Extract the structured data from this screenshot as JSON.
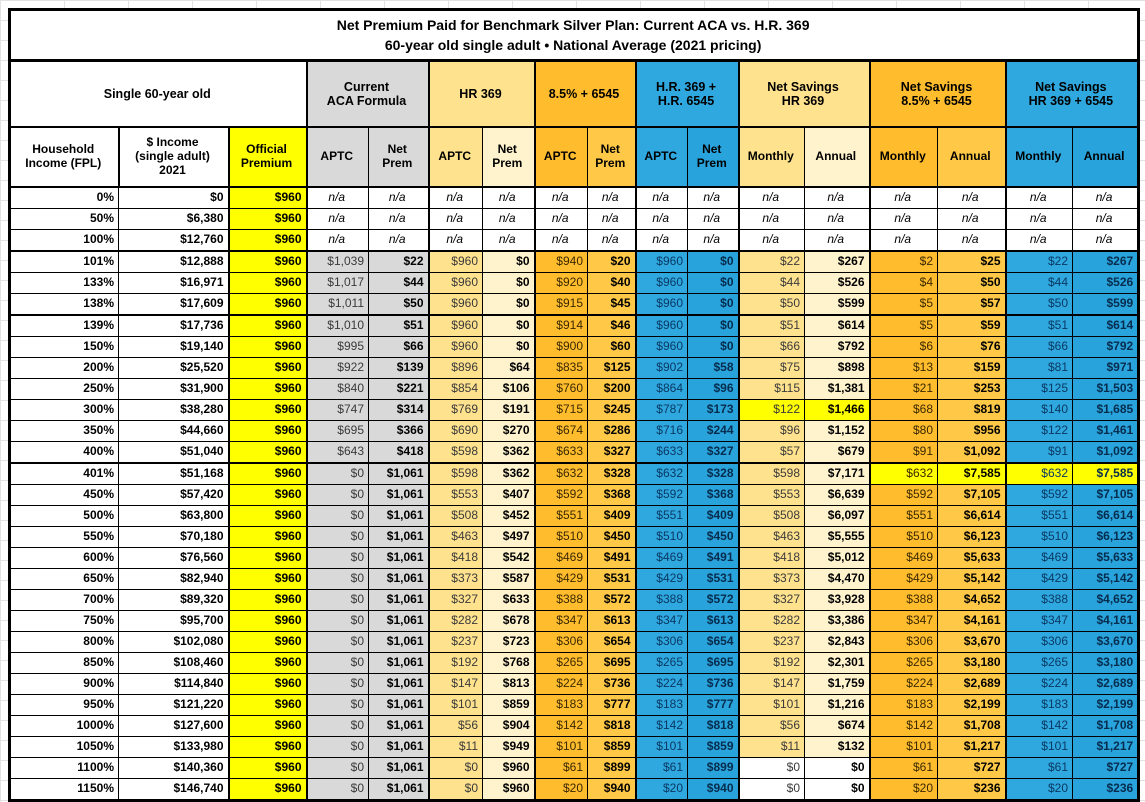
{
  "chart_data": {
    "type": "table",
    "title": "Net Premium Paid for Benchmark Silver Plan: Current ACA vs. H.R. 369",
    "subtitle": "60-year old single adult • National Average (2021 pricing)",
    "groups": [
      {
        "label": "Single 60-year old",
        "span": 3
      },
      {
        "label": "Current\nACA Formula",
        "span": 2
      },
      {
        "label": "HR 369",
        "span": 2
      },
      {
        "label": "8.5% + 6545",
        "span": 2
      },
      {
        "label": "H.R. 369 +\nH.R. 6545",
        "span": 2
      },
      {
        "label": "Net Savings\nHR 369",
        "span": 2
      },
      {
        "label": "Net Savings\n8.5% + 6545",
        "span": 2
      },
      {
        "label": "Net Savings\nHR 369 + 6545",
        "span": 2
      }
    ],
    "subheaders": [
      "Household\nIncome (FPL)",
      "$ Income\n(single adult)\n2021",
      "Official\nPremium",
      "APTC",
      "Net\nPrem",
      "APTC",
      "Net\nPrem",
      "APTC",
      "Net\nPrem",
      "APTC",
      "Net\nPrem",
      "Monthly",
      "Annual",
      "Monthly",
      "Annual",
      "Monthly",
      "Annual"
    ],
    "na_text": "n/a",
    "thick_border_after_rows": [
      2,
      5,
      12
    ],
    "rows": [
      {
        "na": true,
        "cells": [
          "0%",
          "$0",
          "$960",
          "n/a",
          "n/a",
          "n/a",
          "n/a",
          "n/a",
          "n/a",
          "n/a",
          "n/a",
          "n/a",
          "n/a",
          "n/a",
          "n/a",
          "n/a",
          "n/a"
        ]
      },
      {
        "na": true,
        "cells": [
          "50%",
          "$6,380",
          "$960",
          "n/a",
          "n/a",
          "n/a",
          "n/a",
          "n/a",
          "n/a",
          "n/a",
          "n/a",
          "n/a",
          "n/a",
          "n/a",
          "n/a",
          "n/a",
          "n/a"
        ]
      },
      {
        "na": true,
        "cells": [
          "100%",
          "$12,760",
          "$960",
          "n/a",
          "n/a",
          "n/a",
          "n/a",
          "n/a",
          "n/a",
          "n/a",
          "n/a",
          "n/a",
          "n/a",
          "n/a",
          "n/a",
          "n/a",
          "n/a"
        ]
      },
      {
        "cells": [
          "101%",
          "$12,888",
          "$960",
          "$1,039",
          "$22",
          "$960",
          "$0",
          "$940",
          "$20",
          "$960",
          "$0",
          "$22",
          "$267",
          "$2",
          "$25",
          "$22",
          "$267"
        ]
      },
      {
        "cells": [
          "133%",
          "$16,971",
          "$960",
          "$1,017",
          "$44",
          "$960",
          "$0",
          "$920",
          "$40",
          "$960",
          "$0",
          "$44",
          "$526",
          "$4",
          "$50",
          "$44",
          "$526"
        ]
      },
      {
        "cells": [
          "138%",
          "$17,609",
          "$960",
          "$1,011",
          "$50",
          "$960",
          "$0",
          "$915",
          "$45",
          "$960",
          "$0",
          "$50",
          "$599",
          "$5",
          "$57",
          "$50",
          "$599"
        ]
      },
      {
        "cells": [
          "139%",
          "$17,736",
          "$960",
          "$1,010",
          "$51",
          "$960",
          "$0",
          "$914",
          "$46",
          "$960",
          "$0",
          "$51",
          "$614",
          "$5",
          "$59",
          "$51",
          "$614"
        ]
      },
      {
        "cells": [
          "150%",
          "$19,140",
          "$960",
          "$995",
          "$66",
          "$960",
          "$0",
          "$900",
          "$60",
          "$960",
          "$0",
          "$66",
          "$792",
          "$6",
          "$76",
          "$66",
          "$792"
        ]
      },
      {
        "cells": [
          "200%",
          "$25,520",
          "$960",
          "$922",
          "$139",
          "$896",
          "$64",
          "$835",
          "$125",
          "$902",
          "$58",
          "$75",
          "$898",
          "$13",
          "$159",
          "$81",
          "$971"
        ]
      },
      {
        "cells": [
          "250%",
          "$31,900",
          "$960",
          "$840",
          "$221",
          "$854",
          "$106",
          "$760",
          "$200",
          "$864",
          "$96",
          "$115",
          "$1,381",
          "$21",
          "$253",
          "$125",
          "$1,503"
        ]
      },
      {
        "hl": {
          "11": "yellow",
          "12": "yellow"
        },
        "cells": [
          "300%",
          "$38,280",
          "$960",
          "$747",
          "$314",
          "$769",
          "$191",
          "$715",
          "$245",
          "$787",
          "$173",
          "$122",
          "$1,466",
          "$68",
          "$819",
          "$140",
          "$1,685"
        ]
      },
      {
        "cells": [
          "350%",
          "$44,660",
          "$960",
          "$695",
          "$366",
          "$690",
          "$270",
          "$674",
          "$286",
          "$716",
          "$244",
          "$96",
          "$1,152",
          "$80",
          "$956",
          "$122",
          "$1,461"
        ]
      },
      {
        "cells": [
          "400%",
          "$51,040",
          "$960",
          "$643",
          "$418",
          "$598",
          "$362",
          "$633",
          "$327",
          "$633",
          "$327",
          "$57",
          "$679",
          "$91",
          "$1,092",
          "$91",
          "$1,092"
        ]
      },
      {
        "hl": {
          "13": "yellow",
          "14": "yellow",
          "15": "yellow",
          "16": "yellow"
        },
        "cells": [
          "401%",
          "$51,168",
          "$960",
          "$0",
          "$1,061",
          "$598",
          "$362",
          "$632",
          "$328",
          "$632",
          "$328",
          "$598",
          "$7,171",
          "$632",
          "$7,585",
          "$632",
          "$7,585"
        ]
      },
      {
        "cells": [
          "450%",
          "$57,420",
          "$960",
          "$0",
          "$1,061",
          "$553",
          "$407",
          "$592",
          "$368",
          "$592",
          "$368",
          "$553",
          "$6,639",
          "$592",
          "$7,105",
          "$592",
          "$7,105"
        ]
      },
      {
        "cells": [
          "500%",
          "$63,800",
          "$960",
          "$0",
          "$1,061",
          "$508",
          "$452",
          "$551",
          "$409",
          "$551",
          "$409",
          "$508",
          "$6,097",
          "$551",
          "$6,614",
          "$551",
          "$6,614"
        ]
      },
      {
        "cells": [
          "550%",
          "$70,180",
          "$960",
          "$0",
          "$1,061",
          "$463",
          "$497",
          "$510",
          "$450",
          "$510",
          "$450",
          "$463",
          "$5,555",
          "$510",
          "$6,123",
          "$510",
          "$6,123"
        ]
      },
      {
        "cells": [
          "600%",
          "$76,560",
          "$960",
          "$0",
          "$1,061",
          "$418",
          "$542",
          "$469",
          "$491",
          "$469",
          "$491",
          "$418",
          "$5,012",
          "$469",
          "$5,633",
          "$469",
          "$5,633"
        ]
      },
      {
        "cells": [
          "650%",
          "$82,940",
          "$960",
          "$0",
          "$1,061",
          "$373",
          "$587",
          "$429",
          "$531",
          "$429",
          "$531",
          "$373",
          "$4,470",
          "$429",
          "$5,142",
          "$429",
          "$5,142"
        ]
      },
      {
        "cells": [
          "700%",
          "$89,320",
          "$960",
          "$0",
          "$1,061",
          "$327",
          "$633",
          "$388",
          "$572",
          "$388",
          "$572",
          "$327",
          "$3,928",
          "$388",
          "$4,652",
          "$388",
          "$4,652"
        ]
      },
      {
        "cells": [
          "750%",
          "$95,700",
          "$960",
          "$0",
          "$1,061",
          "$282",
          "$678",
          "$347",
          "$613",
          "$347",
          "$613",
          "$282",
          "$3,386",
          "$347",
          "$4,161",
          "$347",
          "$4,161"
        ]
      },
      {
        "cells": [
          "800%",
          "$102,080",
          "$960",
          "$0",
          "$1,061",
          "$237",
          "$723",
          "$306",
          "$654",
          "$306",
          "$654",
          "$237",
          "$2,843",
          "$306",
          "$3,670",
          "$306",
          "$3,670"
        ]
      },
      {
        "cells": [
          "850%",
          "$108,460",
          "$960",
          "$0",
          "$1,061",
          "$192",
          "$768",
          "$265",
          "$695",
          "$265",
          "$695",
          "$192",
          "$2,301",
          "$265",
          "$3,180",
          "$265",
          "$3,180"
        ]
      },
      {
        "cells": [
          "900%",
          "$114,840",
          "$960",
          "$0",
          "$1,061",
          "$147",
          "$813",
          "$224",
          "$736",
          "$224",
          "$736",
          "$147",
          "$1,759",
          "$224",
          "$2,689",
          "$224",
          "$2,689"
        ]
      },
      {
        "cells": [
          "950%",
          "$121,220",
          "$960",
          "$0",
          "$1,061",
          "$101",
          "$859",
          "$183",
          "$777",
          "$183",
          "$777",
          "$101",
          "$1,216",
          "$183",
          "$2,199",
          "$183",
          "$2,199"
        ]
      },
      {
        "cells": [
          "1000%",
          "$127,600",
          "$960",
          "$0",
          "$1,061",
          "$56",
          "$904",
          "$142",
          "$818",
          "$142",
          "$818",
          "$56",
          "$674",
          "$142",
          "$1,708",
          "$142",
          "$1,708"
        ]
      },
      {
        "cells": [
          "1050%",
          "$133,980",
          "$960",
          "$0",
          "$1,061",
          "$11",
          "$949",
          "$101",
          "$859",
          "$101",
          "$859",
          "$11",
          "$132",
          "$101",
          "$1,217",
          "$101",
          "$1,217"
        ]
      },
      {
        "hl": {
          "11": "white",
          "12": "white"
        },
        "cells": [
          "1100%",
          "$140,360",
          "$960",
          "$0",
          "$1,061",
          "$0",
          "$960",
          "$61",
          "$899",
          "$61",
          "$899",
          "$0",
          "$0",
          "$61",
          "$727",
          "$61",
          "$727"
        ]
      },
      {
        "hl": {
          "11": "white",
          "12": "white"
        },
        "cells": [
          "1150%",
          "$146,740",
          "$960",
          "$0",
          "$1,061",
          "$0",
          "$960",
          "$20",
          "$940",
          "$20",
          "$940",
          "$0",
          "$0",
          "$20",
          "$236",
          "$20",
          "$236"
        ]
      }
    ],
    "colors": {
      "highlight_yellow": "#FFFF00",
      "gray": "#D9D9D9",
      "cream": "#FFE28E",
      "cream_light": "#FFF3CD",
      "orange": "#FFBD2E",
      "orange_light": "#FFC947",
      "blue": "#2FA8E0",
      "navy_text": "#0A3963",
      "border": "#000000"
    }
  }
}
